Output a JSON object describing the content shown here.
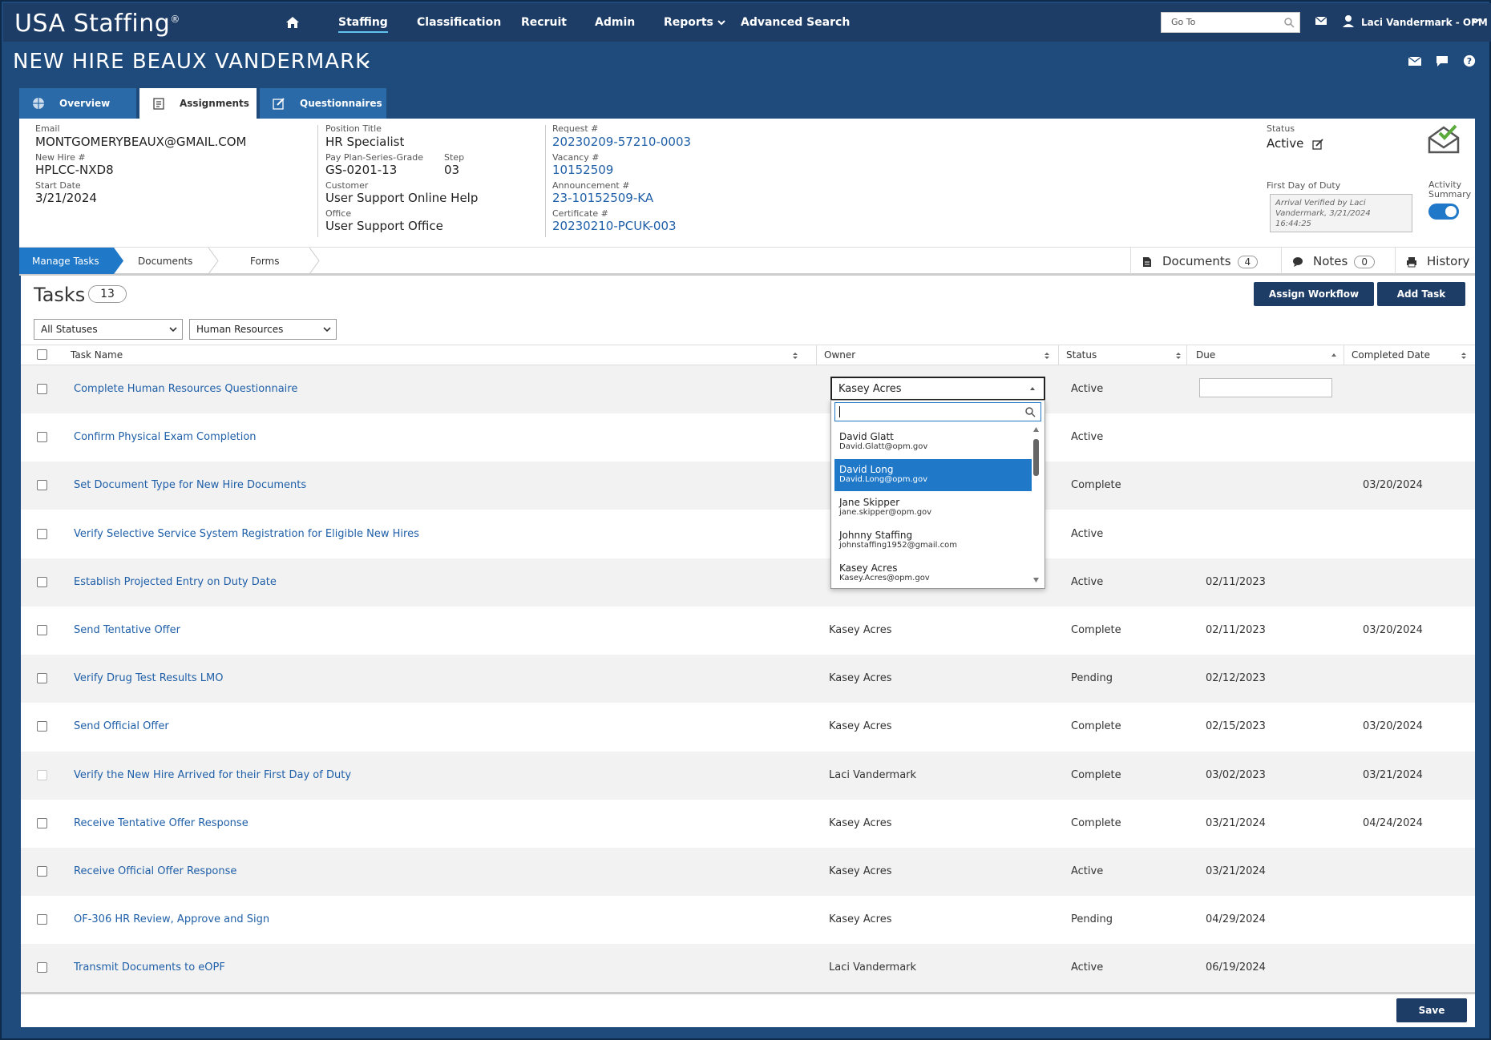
{
  "app": {
    "logo_text": "USA Staffing",
    "logo_mark": "®"
  },
  "nav": {
    "items": [
      {
        "label": "Staffing",
        "active": true
      },
      {
        "label": "Classification"
      },
      {
        "label": "Recruit"
      },
      {
        "label": "Admin"
      },
      {
        "label": "Reports"
      },
      {
        "label": "Advanced Search"
      }
    ],
    "goto_placeholder": "Go To",
    "user_name": "Laci Vandermark - OPM"
  },
  "page_title": "NEW HIRE BEAUX VANDERMARK",
  "tabs": [
    {
      "label": "Overview"
    },
    {
      "label": "Assignments",
      "selected": true
    },
    {
      "label": "Questionnaires"
    }
  ],
  "info": {
    "email_label": "Email",
    "email": "MONTGOMERYBEAUX@GMAIL.COM",
    "newhire_label": "New Hire #",
    "newhire": "HPLCC-NXD8",
    "start_label": "Start Date",
    "start": "3/21/2024",
    "position_label": "Position Title",
    "position": "HR Specialist",
    "ppsg_label": "Pay Plan-Series-Grade",
    "ppsg": "GS-0201-13",
    "step_label": "Step",
    "step": "03",
    "customer_label": "Customer",
    "customer": "User Support Online Help",
    "office_label": "Office",
    "office": "User Support Office",
    "request_label": "Request #",
    "request": "20230209-57210-0003",
    "vacancy_label": "Vacancy #",
    "vacancy": "10152509",
    "announcement_label": "Announcement #",
    "announcement": "23-10152509-KA",
    "certificate_label": "Certificate #",
    "certificate": "20230210-PCUK-003",
    "status_label": "Status",
    "status": "Active",
    "fdd_label": "First Day of Duty",
    "fdd_text": "Arrival Verified by Laci Vandermark, 3/21/2024 16:44:25",
    "activity_label_1": "Activity",
    "activity_label_2": "Summary"
  },
  "subnav": {
    "crumbs": [
      "Manage Tasks",
      "Documents",
      "Forms"
    ],
    "documents_label": "Documents",
    "documents_count": "4",
    "notes_label": "Notes",
    "notes_count": "0",
    "history_label": "History"
  },
  "tasks": {
    "title": "Tasks",
    "count": "13",
    "assign_workflow": "Assign Workflow",
    "add_task": "Add Task",
    "status_filter": "All Statuses",
    "group_filter": "Human Resources",
    "columns": {
      "task_name": "Task Name",
      "owner": "Owner",
      "status": "Status",
      "due": "Due",
      "completed": "Completed Date"
    },
    "rows": [
      {
        "name": "Complete Human Resources Questionnaire",
        "owner": "",
        "status": "Active",
        "due": "",
        "completed": ""
      },
      {
        "name": "Confirm Physical Exam Completion",
        "owner": "",
        "status": "Active",
        "due": "",
        "completed": ""
      },
      {
        "name": "Set Document Type for New Hire Documents",
        "owner": "",
        "status": "Complete",
        "due": "",
        "completed": "03/20/2024"
      },
      {
        "name": "Verify Selective Service System Registration for Eligible New Hires",
        "owner": "",
        "status": "Active",
        "due": "",
        "completed": ""
      },
      {
        "name": "Establish Projected Entry on Duty Date",
        "owner": "",
        "status": "Active",
        "due": "02/11/2023",
        "completed": ""
      },
      {
        "name": "Send Tentative Offer",
        "owner": "Kasey Acres",
        "status": "Complete",
        "due": "02/11/2023",
        "completed": "03/20/2024"
      },
      {
        "name": "Verify Drug Test Results LMO",
        "owner": "Kasey Acres",
        "status": "Pending",
        "due": "02/12/2023",
        "completed": ""
      },
      {
        "name": "Send Official Offer",
        "owner": "Kasey Acres",
        "status": "Complete",
        "due": "02/15/2023",
        "completed": "03/20/2024"
      },
      {
        "name": "Verify the New Hire Arrived for their First Day of Duty",
        "owner": "Laci Vandermark",
        "status": "Complete",
        "due": "03/02/2023",
        "completed": "03/21/2024"
      },
      {
        "name": "Receive Tentative Offer Response",
        "owner": "Kasey Acres",
        "status": "Complete",
        "due": "03/21/2024",
        "completed": "04/24/2024"
      },
      {
        "name": "Receive Official Offer Response",
        "owner": "Kasey Acres",
        "status": "Active",
        "due": "03/21/2024",
        "completed": ""
      },
      {
        "name": "OF-306 HR Review, Approve and Sign",
        "owner": "Kasey Acres",
        "status": "Pending",
        "due": "04/29/2024",
        "completed": ""
      },
      {
        "name": "Transmit Documents to eOPF",
        "owner": "Laci Vandermark",
        "status": "Active",
        "due": "06/19/2024",
        "completed": ""
      }
    ]
  },
  "owner_dropdown": {
    "selected": "Kasey Acres",
    "options": [
      {
        "name": "David Glatt",
        "email": "David.Glatt@opm.gov"
      },
      {
        "name": "David Long",
        "email": "David.Long@opm.gov",
        "highlighted": true
      },
      {
        "name": "Jane Skipper",
        "email": "jane.skipper@opm.gov"
      },
      {
        "name": "Johnny Staffing",
        "email": "johnstaffing1952@gmail.com"
      },
      {
        "name": "Kasey Acres",
        "email": "Kasey.Acres@opm.gov"
      }
    ]
  },
  "footer": {
    "save": "Save"
  },
  "colors": {
    "nav_bg": "#1d3d66",
    "header_bg": "#1f4b7c",
    "accent": "#1f78c8",
    "link": "#1f5fa8"
  }
}
